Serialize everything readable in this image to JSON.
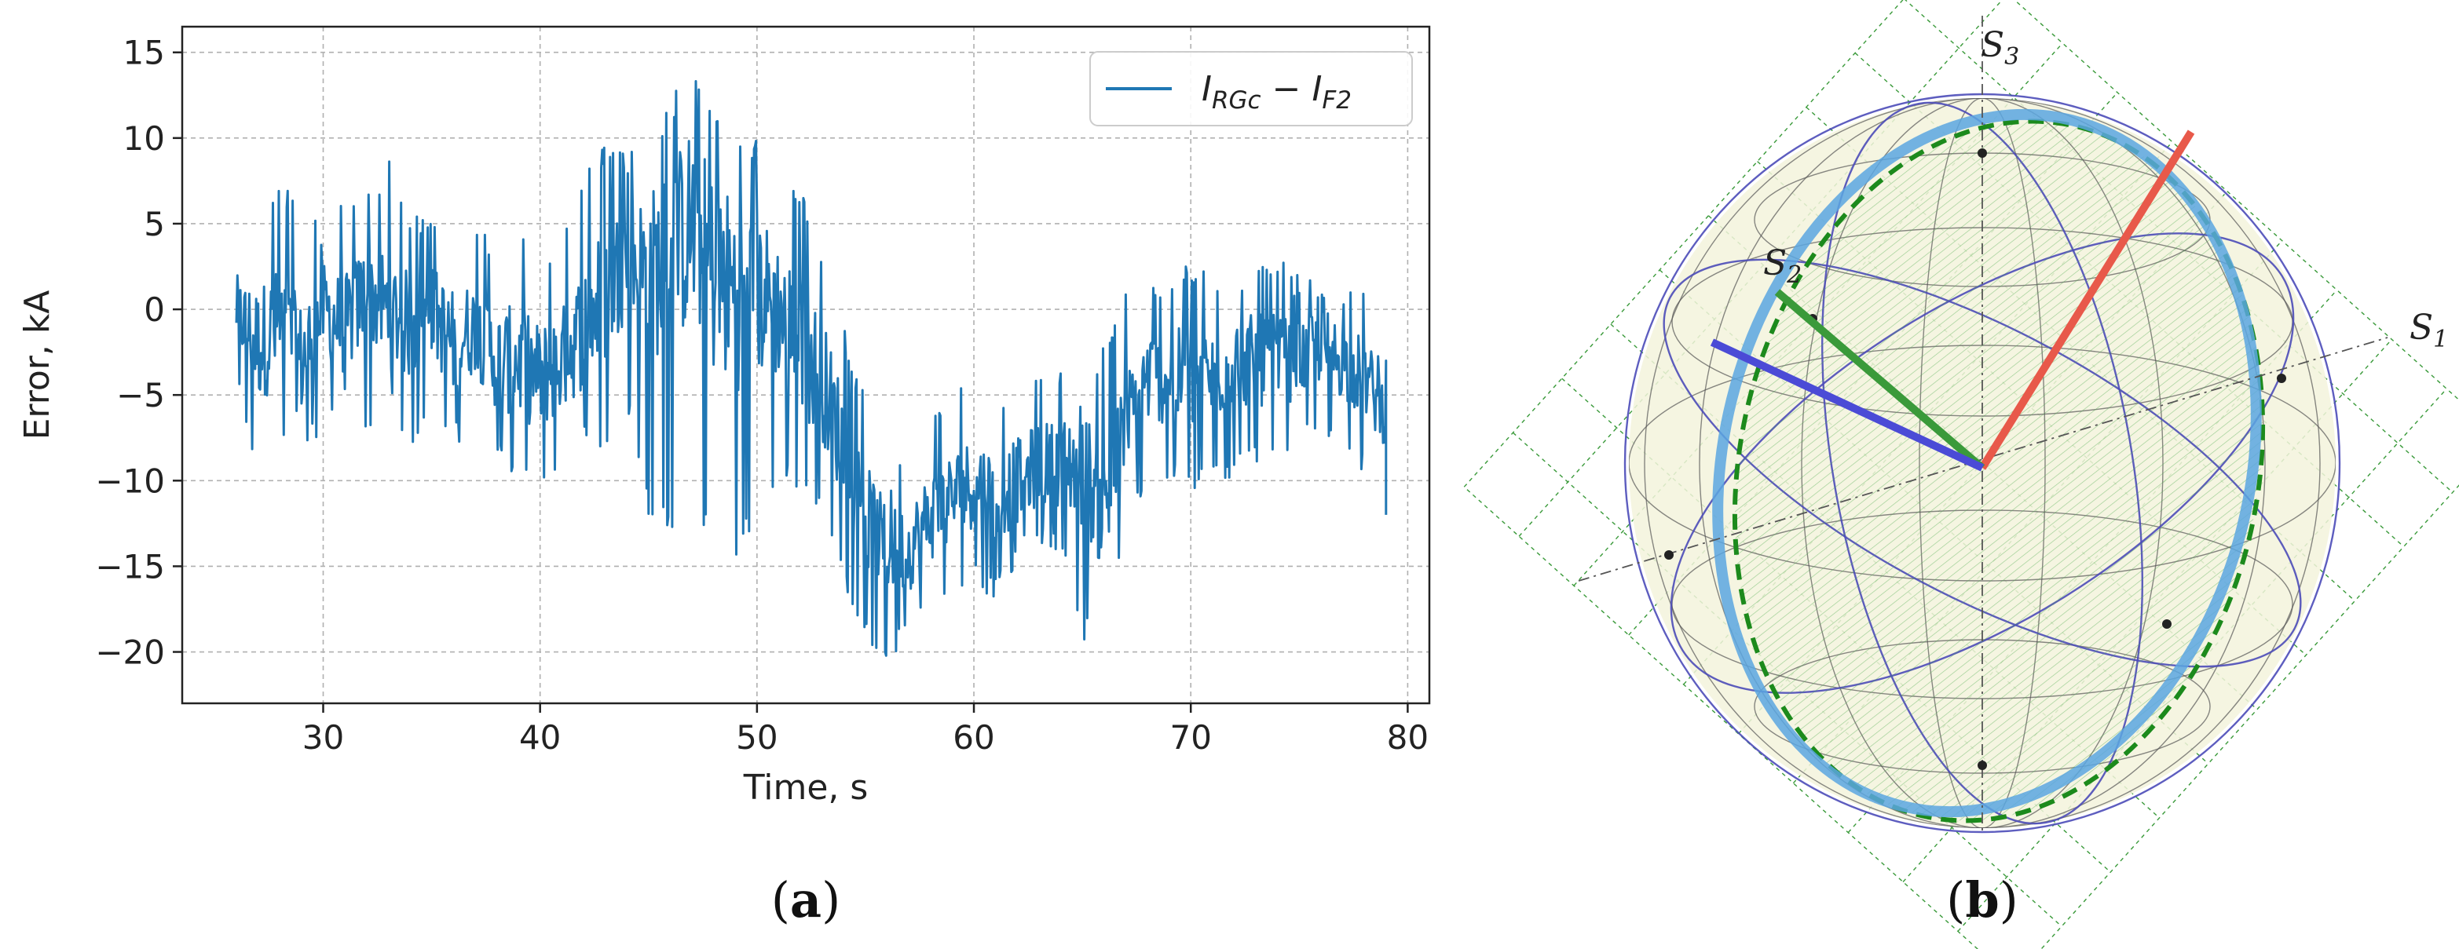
{
  "chart_data": [
    {
      "type": "line",
      "panel": "a",
      "caption_open": "(",
      "caption_letter": "a",
      "caption_close": ")",
      "xlabel": "Time, s",
      "ylabel": "Error, kA",
      "xlim": [
        23.5,
        81.0
      ],
      "ylim": [
        -23.0,
        16.5
      ],
      "xticks": [
        30,
        40,
        50,
        60,
        70,
        80
      ],
      "yticks": [
        -20,
        -15,
        -10,
        -5,
        0,
        5,
        10,
        15
      ],
      "grid": true,
      "legend": {
        "placement": "top-right",
        "label": "I_RGc − I_F2",
        "I1": "I",
        "sub1": "RGc",
        "op": " − ",
        "I2": "I",
        "sub2": "F2"
      },
      "line_color": "#1f77b4",
      "series": [
        {
          "name": "I_RGc − I_F2",
          "x": [
            26,
            27,
            28,
            29,
            30,
            31,
            32,
            33,
            34,
            35,
            36,
            37,
            38,
            39,
            40,
            41,
            42,
            43,
            44,
            45,
            46,
            47,
            48,
            49,
            50,
            51,
            52,
            53,
            54,
            55,
            56,
            57,
            58,
            59,
            60,
            61,
            62,
            63,
            64,
            65,
            66,
            67,
            68,
            69,
            70,
            71,
            72,
            73,
            74,
            75,
            76,
            77,
            78,
            79
          ],
          "y": [
            0,
            -2,
            -1,
            -3,
            0,
            -1,
            1,
            0,
            -1,
            0,
            -2,
            -1,
            -3,
            -3,
            -4,
            -3,
            -1,
            1,
            3,
            2,
            3,
            5,
            2,
            1,
            1,
            0,
            -2,
            -4,
            -8,
            -12,
            -14,
            -14,
            -12,
            -11,
            -10,
            -11,
            -10,
            -9,
            -9,
            -9,
            -12,
            -7,
            -4,
            -4,
            -4,
            -4,
            -3,
            -3,
            -3,
            -3,
            -2,
            -3,
            -4,
            -6
          ],
          "y_max": [
            4,
            5,
            8,
            6,
            5,
            7,
            7,
            9,
            6,
            5,
            6,
            5,
            4,
            5,
            3,
            4,
            8,
            10,
            9,
            10,
            12,
            15,
            12,
            11,
            10,
            8,
            7,
            4,
            -1,
            -5,
            -10,
            -8,
            -6,
            -5,
            -4,
            -5,
            -4,
            -3,
            -3,
            -3,
            -2,
            1,
            2,
            2,
            3,
            2,
            2,
            3,
            3,
            2,
            2,
            1,
            1,
            -3
          ],
          "y_min": [
            -5,
            -10,
            -8,
            -9,
            -7,
            -6,
            -7,
            -6,
            -8,
            -7,
            -8,
            -7,
            -9,
            -10,
            -11,
            -10,
            -8,
            -9,
            -6,
            -12,
            -13,
            -11,
            -14,
            -15,
            -12,
            -10,
            -11,
            -12,
            -16,
            -19,
            -21,
            -19,
            -18,
            -17,
            -16,
            -17,
            -15,
            -14,
            -14,
            -20,
            -17,
            -14,
            -10,
            -10,
            -11,
            -10,
            -10,
            -9,
            -9,
            -8,
            -8,
            -9,
            -10,
            -12
          ]
        }
      ]
    },
    {
      "type": "diagram",
      "panel": "b",
      "caption_open": "(",
      "caption_letter": "b",
      "caption_close": ")",
      "axes": {
        "s1": {
          "base": "S",
          "sub": "1",
          "color": "#e8594a"
        },
        "s2": {
          "base": "S",
          "sub": "2",
          "color": "#3a9a3a"
        },
        "s3": {
          "base": "S",
          "sub": "3",
          "color": "#4b4bd6"
        }
      },
      "vector_colors": [
        "#e8594a",
        "#3a9a3a",
        "#4b4bd6"
      ],
      "trajectory_color": "#5aa6e0",
      "ellipse_color": "#1c8a1c",
      "sphere_fill": "#f3f3dc"
    }
  ]
}
